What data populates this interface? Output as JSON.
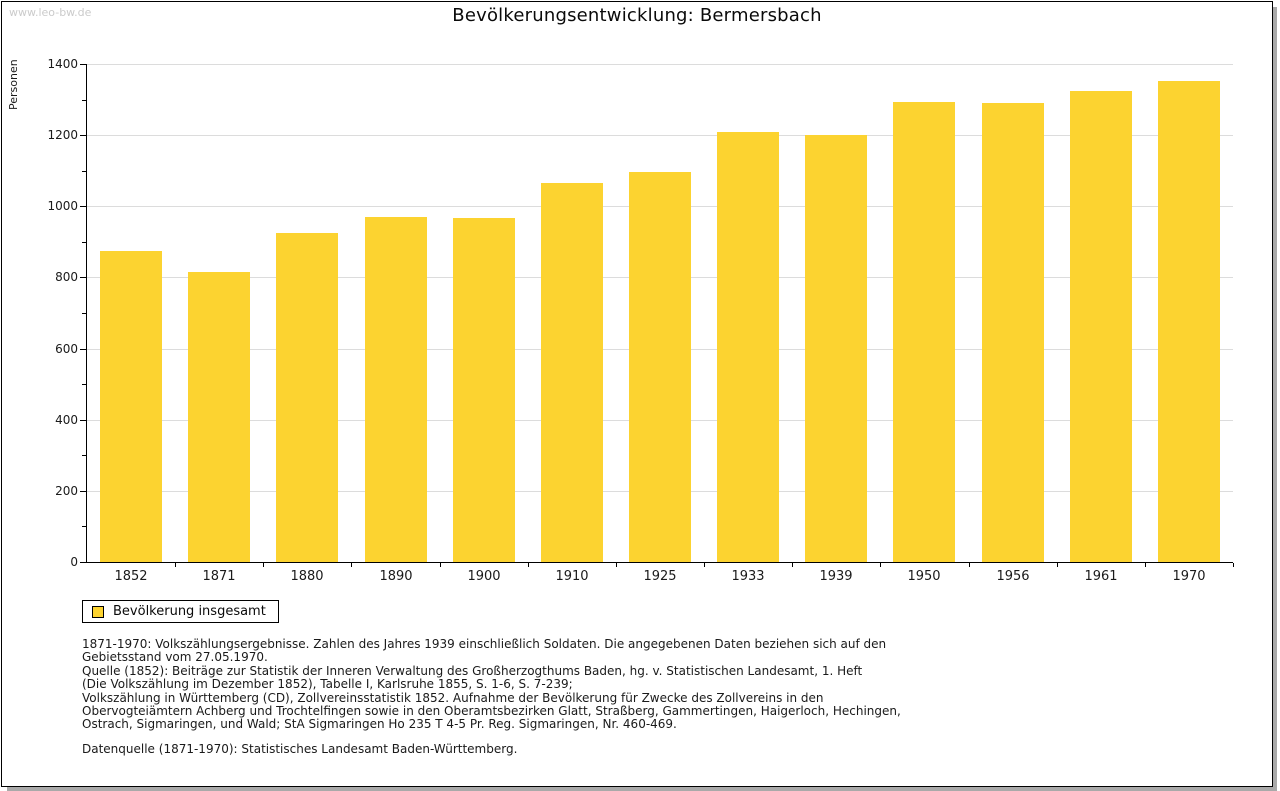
{
  "watermark": "www.leo-bw.de",
  "title": "Bevölkerungsentwicklung: Bermersbach",
  "chart_data": {
    "type": "bar",
    "title": "Bevölkerungsentwicklung: Bermersbach",
    "categories": [
      "1852",
      "1871",
      "1880",
      "1890",
      "1900",
      "1910",
      "1925",
      "1933",
      "1939",
      "1950",
      "1956",
      "1961",
      "1970"
    ],
    "series": [
      {
        "name": "Bevölkerung insgesamt",
        "values": [
          873,
          815,
          925,
          971,
          967,
          1066,
          1095,
          1210,
          1200,
          1293,
          1290,
          1324,
          1351
        ]
      }
    ],
    "xlabel": "",
    "ylabel": "Personen",
    "ylim": [
      0,
      1400
    ],
    "ytick_step": 200,
    "yminor_step": 100,
    "grid": true,
    "legend_position": "bottom-left",
    "bar_color": "#FCD330",
    "gridline_color": "#DCDCDC"
  },
  "legend": {
    "label": "Bevölkerung insgesamt",
    "swatch_color": "#FCD330"
  },
  "footnotes": {
    "lines": [
      "1871-1970: Volkszählungsergebnisse. Zahlen des Jahres 1939 einschließlich Soldaten. Die angegebenen Daten beziehen sich auf den",
      "Gebietsstand vom 27.05.1970.",
      "Quelle (1852): Beiträge zur Statistik der Inneren Verwaltung des Großherzogthums Baden, hg. v. Statistischen Landesamt, 1. Heft",
      "(Die Volkszählung im Dezember 1852), Tabelle I, Karlsruhe 1855, S. 1-6, S. 7-239;",
      "Volkszählung in Württemberg (CD), Zollvereinsstatistik 1852. Aufnahme der Bevölkerung für Zwecke des Zollvereins in den",
      "Obervogteiämtern Achberg und Trochtelfingen sowie in den Oberamtsbezirken Glatt, Straßberg, Gammertingen, Haigerloch, Hechingen,",
      "Ostrach, Sigmaringen, und Wald; StA Sigmaringen Ho 235 T 4-5 Pr. Reg. Sigmaringen, Nr. 460-469."
    ],
    "datasource": "Datenquelle (1871-1970): Statistisches Landesamt Baden-Württemberg."
  }
}
